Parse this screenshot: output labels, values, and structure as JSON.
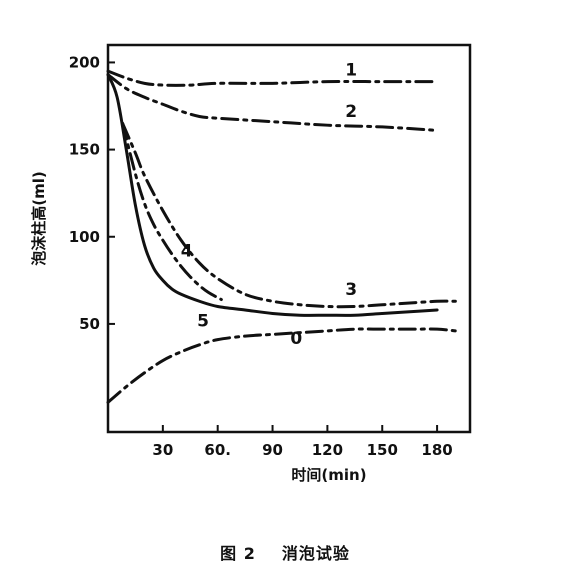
{
  "chart_data": {
    "type": "line",
    "xlabel": "时间(min)",
    "ylabel": "泡沫柱高(ml)",
    "xlim": [
      0,
      198
    ],
    "ylim": [
      -12,
      210
    ],
    "x_ticks": [
      {
        "value": 30,
        "label": "30"
      },
      {
        "value": 60,
        "label": "60."
      },
      {
        "value": 90,
        "label": "90"
      },
      {
        "value": 120,
        "label": "120"
      },
      {
        "value": 150,
        "label": "150"
      },
      {
        "value": 180,
        "label": "180"
      }
    ],
    "y_ticks": [
      {
        "value": 50,
        "label": "50"
      },
      {
        "value": 100,
        "label": "100"
      },
      {
        "value": 150,
        "label": "150"
      },
      {
        "value": 200,
        "label": "200"
      }
    ],
    "grid": false,
    "series": [
      {
        "name": "1",
        "style": "dashdot",
        "label_at": [
          133,
          196
        ],
        "x": [
          0,
          10,
          20,
          30,
          45,
          60,
          90,
          120,
          150,
          180
        ],
        "y": [
          195,
          191,
          188,
          187,
          187,
          188,
          188,
          189,
          189,
          189
        ]
      },
      {
        "name": "2",
        "style": "dashdot",
        "label_at": [
          133,
          172
        ],
        "x": [
          0,
          10,
          20,
          30,
          40,
          50,
          60,
          90,
          120,
          150,
          180
        ],
        "y": [
          193,
          185,
          180,
          176,
          172,
          169,
          168,
          166,
          164,
          163,
          161
        ]
      },
      {
        "name": "3",
        "style": "dashdot",
        "label_at": [
          133,
          70
        ],
        "x": [
          8,
          15,
          20,
          30,
          40,
          50,
          60,
          75,
          90,
          105,
          120,
          135,
          150,
          165,
          180,
          190
        ],
        "y": [
          165,
          148,
          135,
          115,
          98,
          85,
          76,
          67,
          63,
          61,
          60,
          60,
          61,
          62,
          63,
          63
        ]
      },
      {
        "name": "4",
        "style": "dashdot",
        "label_at": [
          43,
          92
        ],
        "x": [
          8,
          15,
          20,
          25,
          30,
          35,
          40,
          45,
          50,
          55,
          62
        ],
        "y": [
          165,
          136,
          119,
          107,
          98,
          90,
          83,
          77,
          72,
          68,
          64
        ]
      },
      {
        "name": "5",
        "style": "solid",
        "label_at": [
          52,
          52
        ],
        "x": [
          0,
          5,
          10,
          15,
          20,
          25,
          30,
          35,
          40,
          50,
          60,
          75,
          90,
          105,
          120,
          135,
          150,
          165,
          180
        ],
        "y": [
          193,
          180,
          150,
          118,
          95,
          82,
          75,
          70,
          67,
          63,
          60,
          58,
          56,
          55,
          55,
          55,
          56,
          57,
          58
        ]
      },
      {
        "name": "0",
        "style": "dashdot",
        "label_at": [
          103,
          42
        ],
        "x": [
          0,
          10,
          20,
          30,
          40,
          50,
          60,
          75,
          90,
          105,
          120,
          135,
          150,
          165,
          180,
          190
        ],
        "y": [
          5,
          14,
          22,
          29,
          34,
          38,
          41,
          43,
          44,
          45,
          46,
          47,
          47,
          47,
          47,
          46
        ]
      }
    ]
  },
  "caption": {
    "figure_number": "图 2",
    "title": "消泡试验"
  }
}
